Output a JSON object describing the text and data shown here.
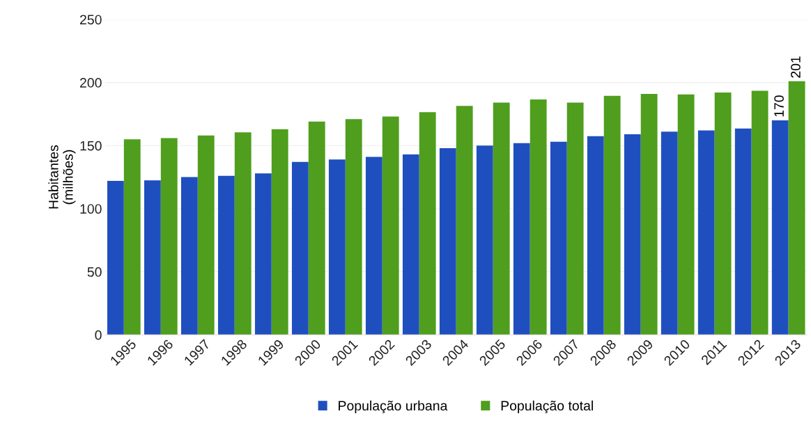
{
  "chart_data": {
    "type": "bar",
    "ylabel": "Habitantes\n(milhões)",
    "categories": [
      "1995",
      "1996",
      "1997",
      "1998",
      "1999",
      "2000",
      "2001",
      "2002",
      "2003",
      "2004",
      "2005",
      "2006",
      "2007",
      "2008",
      "2009",
      "2010",
      "2011",
      "2012",
      "2013"
    ],
    "series": [
      {
        "name": "População urbana",
        "color": "#1f4fbf",
        "values": [
          122,
          122.5,
          125,
          126,
          128,
          137,
          139,
          141,
          143,
          148,
          150,
          152,
          153,
          157.5,
          159,
          161,
          162,
          163.5,
          170
        ],
        "value_labels": [
          null,
          null,
          null,
          null,
          null,
          null,
          null,
          null,
          null,
          null,
          null,
          null,
          null,
          null,
          null,
          null,
          null,
          null,
          "170"
        ]
      },
      {
        "name": "População total",
        "color": "#4f9e1e",
        "values": [
          155,
          156,
          158,
          160.5,
          163,
          169,
          171,
          173,
          176.5,
          181.5,
          184,
          186.5,
          184,
          189.5,
          191,
          190.5,
          192,
          193.5,
          201
        ],
        "value_labels": [
          null,
          null,
          null,
          null,
          null,
          null,
          null,
          null,
          null,
          null,
          null,
          null,
          null,
          null,
          null,
          null,
          null,
          null,
          "201"
        ]
      }
    ],
    "ylim": [
      0,
      250
    ],
    "yticks": [
      0,
      50,
      100,
      150,
      200,
      250
    ],
    "grid": "y",
    "legend": "bottom"
  }
}
